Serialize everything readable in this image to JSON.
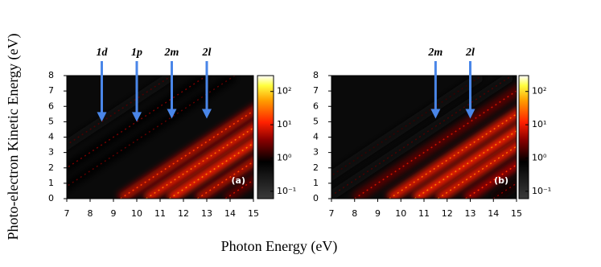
{
  "xlabel": "Photon Energy (eV)",
  "ylabel": "Photo-electron Kinetic Energy (eV)",
  "chart_data": [
    {
      "type": "heatmap",
      "panel_label": "(a)",
      "xlim": [
        7,
        15
      ],
      "xticks": [
        7,
        8,
        9,
        10,
        11,
        12,
        13,
        14,
        15
      ],
      "ylim": [
        0,
        8
      ],
      "yticks": [
        0,
        1,
        2,
        3,
        4,
        5,
        6,
        7,
        8
      ],
      "clim": [
        0.06,
        300
      ],
      "log_color": true,
      "cticks": [
        {
          "value": 0.1,
          "label": "10⁻¹"
        },
        {
          "value": 1,
          "label": "10⁰"
        },
        {
          "value": 10,
          "label": "10¹"
        },
        {
          "value": 100,
          "label": "10²"
        }
      ],
      "ridges": [
        {
          "threshold": 3.5,
          "intensity": 0.5
        },
        {
          "threshold": 5.0,
          "intensity": 0.8
        },
        {
          "threshold": 6.2,
          "intensity": 0.6
        },
        {
          "threshold": 9.3,
          "intensity": 5
        },
        {
          "threshold": 10.4,
          "intensity": 8
        },
        {
          "threshold": 11.4,
          "intensity": 10
        },
        {
          "threshold": 12.6,
          "intensity": 5
        },
        {
          "threshold": 13.8,
          "intensity": 2
        }
      ],
      "annotations": [
        {
          "label": "1d",
          "x": 8.5,
          "y": 5
        },
        {
          "label": "1p",
          "x": 10,
          "y": 5
        },
        {
          "label": "2m",
          "x": 11.5,
          "y": 5.2
        },
        {
          "label": "2l",
          "x": 13,
          "y": 5.2
        }
      ],
      "arrow_color": "#4a86e8"
    },
    {
      "type": "heatmap",
      "panel_label": "(b)",
      "xlim": [
        7,
        15
      ],
      "xticks": [
        7,
        8,
        9,
        10,
        11,
        12,
        13,
        14,
        15
      ],
      "ylim": [
        0,
        8
      ],
      "yticks": [
        0,
        1,
        2,
        3,
        4,
        5,
        6,
        7,
        8
      ],
      "clim": [
        0.06,
        300
      ],
      "log_color": true,
      "cticks": [
        {
          "value": 0.1,
          "label": "10⁻¹"
        },
        {
          "value": 1,
          "label": "10⁰"
        },
        {
          "value": 10,
          "label": "10¹"
        },
        {
          "value": 100,
          "label": "10²"
        }
      ],
      "ridges": [
        {
          "threshold": 5.5,
          "intensity": 0.4
        },
        {
          "threshold": 6.8,
          "intensity": 0.5
        },
        {
          "threshold": 8.0,
          "intensity": 2
        },
        {
          "threshold": 9.5,
          "intensity": 8
        },
        {
          "threshold": 10.6,
          "intensity": 10
        },
        {
          "threshold": 11.6,
          "intensity": 8
        },
        {
          "threshold": 12.8,
          "intensity": 4
        },
        {
          "threshold": 14.0,
          "intensity": 1
        }
      ],
      "annotations": [
        {
          "label": "2m",
          "x": 11.5,
          "y": 5.2
        },
        {
          "label": "2l",
          "x": 13,
          "y": 5.2
        }
      ],
      "arrow_color": "#4a86e8"
    }
  ]
}
